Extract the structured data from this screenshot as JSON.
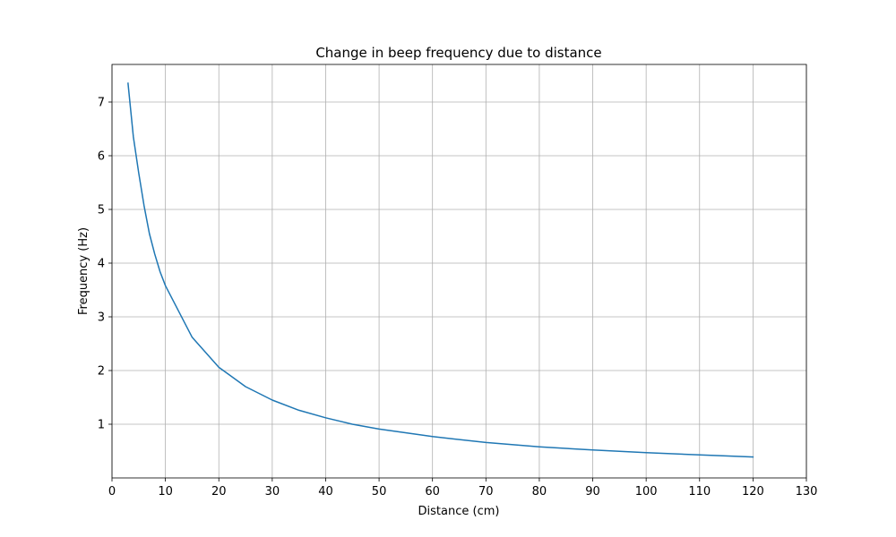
{
  "chart_data": {
    "type": "line",
    "title": "Change in beep frequency due to distance",
    "xlabel": "Distance (cm)",
    "ylabel": "Frequency (Hz)",
    "xlim": [
      0,
      130
    ],
    "ylim": [
      0.0,
      7.7
    ],
    "xticks": [
      0,
      10,
      20,
      30,
      40,
      50,
      60,
      70,
      80,
      90,
      100,
      110,
      120,
      130
    ],
    "yticks": [
      1,
      2,
      3,
      4,
      5,
      6,
      7
    ],
    "grid": true,
    "series": [
      {
        "color": "#1f77b4",
        "x": [
          3,
          4,
          5,
          6,
          7,
          8,
          9,
          10,
          15,
          20,
          25,
          30,
          35,
          40,
          45,
          50,
          60,
          70,
          80,
          90,
          100,
          110,
          120
        ],
        "y": [
          7.35,
          6.35,
          5.68,
          5.07,
          4.55,
          4.17,
          3.84,
          3.58,
          2.62,
          2.06,
          1.7,
          1.45,
          1.26,
          1.12,
          1.0,
          0.91,
          0.77,
          0.66,
          0.58,
          0.52,
          0.47,
          0.43,
          0.39
        ]
      }
    ]
  }
}
